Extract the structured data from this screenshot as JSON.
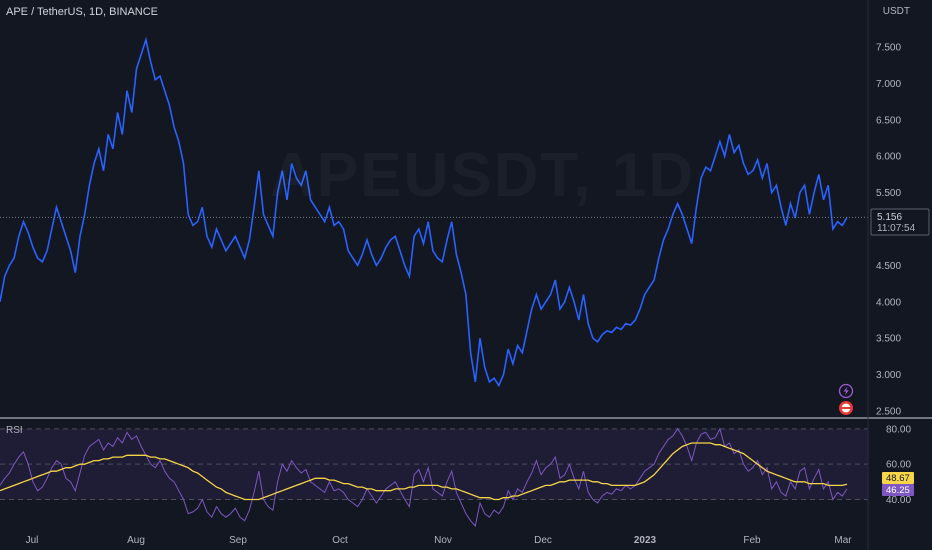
{
  "header": {
    "title": "APE / TetherUS, 1D, BINANCE",
    "unit": "USDT",
    "watermark": "APEUSDT, 1D"
  },
  "colors": {
    "price_line": "#2962ff",
    "rsi_line": "#7e57c2",
    "rsi_ma": "#f7d548",
    "grid_dash": "#4b4f5e",
    "rsi_fill": "#2a2245"
  },
  "price_tag": {
    "value": "5.156",
    "countdown": "11:07:54"
  },
  "rsi_tags": {
    "upper": "48.67",
    "lower": "46.25"
  },
  "rsi_panel": {
    "label": "RSI",
    "levels": [
      "80.00",
      "60.00",
      "40.00"
    ]
  },
  "chart_data": [
    {
      "type": "line",
      "series": [
        {
          "values": [
            4.0,
            4.35,
            4.5,
            4.6,
            4.9,
            5.1,
            4.95,
            4.75,
            4.6,
            4.55,
            4.7,
            5.0,
            5.3,
            5.1,
            4.9,
            4.7,
            4.4,
            4.9,
            5.2,
            5.6,
            5.9,
            6.1,
            5.8,
            6.3,
            6.1,
            6.6,
            6.3,
            6.9,
            6.6,
            7.2,
            7.4,
            7.6,
            7.3,
            7.05,
            7.1,
            6.9,
            6.7,
            6.4,
            6.2,
            5.9,
            5.2,
            5.05,
            5.1,
            5.3,
            4.9,
            4.75,
            5.0,
            4.85,
            4.7,
            4.8,
            4.9,
            4.75,
            4.6,
            4.85,
            5.3,
            5.8,
            5.2,
            5.05,
            4.9,
            5.5,
            5.8,
            5.4,
            5.9,
            5.7,
            5.6,
            5.8,
            5.4,
            5.3,
            5.2,
            5.1,
            5.3,
            5.05,
            5.1,
            5.0,
            4.7,
            4.6,
            4.5,
            4.65,
            4.85,
            4.65,
            4.5,
            4.6,
            4.75,
            4.85,
            4.9,
            4.7,
            4.5,
            4.35,
            4.9,
            5.0,
            4.8,
            5.1,
            4.7,
            4.6,
            4.55,
            4.85,
            5.1,
            4.65,
            4.4,
            4.1,
            3.3,
            2.9,
            3.5,
            3.1,
            2.9,
            2.95,
            2.85,
            3.0,
            3.35,
            3.15,
            3.4,
            3.3,
            3.6,
            3.9,
            4.1,
            3.9,
            4.0,
            4.1,
            4.3,
            3.9,
            4.0,
            4.2,
            4.0,
            3.75,
            4.1,
            3.7,
            3.5,
            3.45,
            3.55,
            3.6,
            3.58,
            3.65,
            3.62,
            3.7,
            3.68,
            3.75,
            3.9,
            4.1,
            4.2,
            4.3,
            4.6,
            4.85,
            5.0,
            5.2,
            5.35,
            5.2,
            5.0,
            4.8,
            5.3,
            5.7,
            5.85,
            5.8,
            6.0,
            6.2,
            6.0,
            6.3,
            6.05,
            6.15,
            5.9,
            5.75,
            5.8,
            5.95,
            5.7,
            5.9,
            5.5,
            5.6,
            5.3,
            5.05,
            5.35,
            5.15,
            5.5,
            5.6,
            5.2,
            5.5,
            5.75,
            5.4,
            5.6,
            5.0,
            5.1,
            5.05,
            5.16
          ]
        }
      ],
      "x_labels": [
        "Jul",
        "Aug",
        "Sep",
        "Oct",
        "Nov",
        "Dec",
        "2023",
        "Feb",
        "Mar"
      ],
      "y_ticks": [
        "7.500",
        "7.000",
        "6.500",
        "6.000",
        "5.500",
        "5.000",
        "4.500",
        "4.000",
        "3.500",
        "3.000",
        "2.500"
      ],
      "ylim": [
        2.5,
        7.5
      ]
    },
    {
      "type": "line",
      "series": [
        {
          "values": [
            48,
            52,
            55,
            60,
            64,
            67,
            60,
            50,
            45,
            47,
            52,
            58,
            62,
            60,
            52,
            50,
            45,
            55,
            65,
            70,
            72,
            74,
            68,
            72,
            70,
            75,
            72,
            78,
            74,
            76,
            70,
            65,
            60,
            58,
            62,
            56,
            52,
            50,
            45,
            40,
            32,
            33,
            35,
            40,
            33,
            30,
            36,
            32,
            30,
            32,
            35,
            30,
            28,
            34,
            44,
            56,
            40,
            36,
            34,
            50,
            60,
            56,
            62,
            58,
            55,
            57,
            50,
            48,
            46,
            44,
            50,
            45,
            46,
            44,
            40,
            38,
            36,
            40,
            46,
            42,
            38,
            42,
            46,
            48,
            50,
            45,
            40,
            36,
            54,
            57,
            50,
            58,
            46,
            44,
            42,
            50,
            56,
            44,
            38,
            32,
            28,
            25,
            38,
            32,
            30,
            34,
            32,
            36,
            45,
            40,
            46,
            44,
            50,
            55,
            62,
            54,
            58,
            60,
            64,
            52,
            54,
            60,
            52,
            46,
            56,
            44,
            40,
            38,
            42,
            44,
            43,
            46,
            45,
            48,
            46,
            48,
            52,
            56,
            58,
            60,
            66,
            70,
            74,
            76,
            80,
            76,
            70,
            62,
            72,
            77,
            78,
            74,
            75,
            80,
            70,
            72,
            66,
            68,
            60,
            56,
            58,
            62,
            54,
            58,
            46,
            50,
            44,
            42,
            50,
            46,
            56,
            58,
            46,
            52,
            57,
            46,
            50,
            40,
            44,
            42,
            46
          ]
        },
        {
          "values": [
            45,
            46,
            47,
            48,
            49,
            50,
            51,
            52,
            53,
            54,
            55,
            56,
            56,
            57,
            58,
            58,
            59,
            60,
            60,
            61,
            62,
            62,
            63,
            63,
            64,
            64,
            64,
            65,
            65,
            65,
            65,
            65,
            64,
            64,
            63,
            63,
            62,
            61,
            60,
            59,
            58,
            56,
            55,
            53,
            51,
            49,
            47,
            46,
            44,
            43,
            42,
            41,
            40,
            40,
            40,
            40,
            41,
            42,
            43,
            44,
            45,
            46,
            47,
            48,
            49,
            50,
            51,
            52,
            52,
            52,
            51,
            51,
            50,
            49,
            49,
            48,
            47,
            47,
            46,
            46,
            45,
            45,
            45,
            45,
            46,
            46,
            46,
            47,
            47,
            48,
            48,
            48,
            48,
            48,
            47,
            47,
            46,
            46,
            45,
            44,
            43,
            42,
            41,
            41,
            41,
            40,
            40,
            41,
            41,
            42,
            42,
            43,
            44,
            45,
            46,
            47,
            48,
            48,
            49,
            50,
            50,
            51,
            51,
            51,
            51,
            51,
            50,
            50,
            49,
            49,
            48,
            48,
            48,
            48,
            48,
            48,
            49,
            50,
            52,
            54,
            57,
            60,
            63,
            66,
            68,
            70,
            71,
            72,
            72,
            72,
            72,
            72,
            71,
            71,
            70,
            69,
            68,
            67,
            66,
            64,
            62,
            60,
            58,
            56,
            55,
            54,
            53,
            52,
            51,
            50,
            50,
            50,
            49,
            49,
            49,
            49,
            48,
            48,
            48,
            48,
            48.67
          ]
        }
      ],
      "ylim": [
        25,
        85
      ],
      "y_ticks": [
        "80.00",
        "60.00",
        "40.00"
      ]
    }
  ]
}
